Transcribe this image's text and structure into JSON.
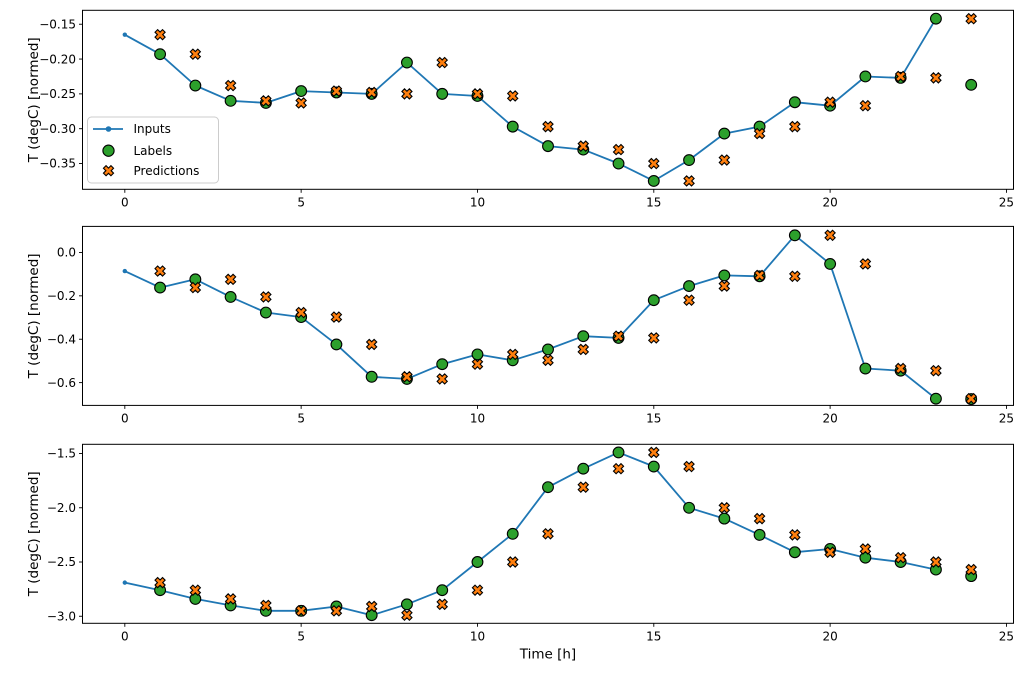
{
  "figure": {
    "background": "#ffffff",
    "xlabel": "Time [h]",
    "ylabel": "T (degC) [normed]"
  },
  "legend": {
    "items": [
      {
        "label": "Inputs",
        "marker": "line-dot",
        "color": "#1f77b4",
        "edge": "#1f77b4"
      },
      {
        "label": "Labels",
        "marker": "circle",
        "color": "#2ca02c",
        "edge": "#000000"
      },
      {
        "label": "Predictions",
        "marker": "x",
        "color": "#ff7f0e",
        "edge": "#000000"
      }
    ]
  },
  "chart_data": [
    {
      "type": "line",
      "title": "",
      "xlabel": "",
      "ylabel": "T (degC) [normed]",
      "xlim": [
        -1.2,
        25.2
      ],
      "ylim": [
        -0.387,
        -0.13
      ],
      "xticks": [
        0,
        5,
        10,
        15,
        20,
        25
      ],
      "xtick_labels": [
        "0",
        "5",
        "10",
        "15",
        "20",
        "25"
      ],
      "yticks": [
        -0.15,
        -0.2,
        -0.25,
        -0.3,
        -0.35
      ],
      "ytick_labels": [
        "−0.15",
        "−0.20",
        "−0.25",
        "−0.30",
        "−0.35"
      ],
      "grid": false,
      "legend_visible": true,
      "series": [
        {
          "name": "Inputs",
          "type": "line",
          "color": "#1f77b4",
          "x": [
            0,
            1,
            2,
            3,
            4,
            5,
            6,
            7,
            8,
            9,
            10,
            11,
            12,
            13,
            14,
            15,
            16,
            17,
            18,
            19,
            20,
            21,
            22,
            23
          ],
          "y": [
            -0.165,
            -0.193,
            -0.238,
            -0.26,
            -0.263,
            -0.246,
            -0.248,
            -0.25,
            -0.205,
            -0.25,
            -0.253,
            -0.297,
            -0.325,
            -0.33,
            -0.35,
            -0.375,
            -0.345,
            -0.307,
            -0.297,
            -0.262,
            -0.267,
            -0.225,
            -0.227,
            -0.142
          ]
        },
        {
          "name": "Labels",
          "type": "scatter",
          "marker": "circle",
          "color": "#2ca02c",
          "edge": "#000000",
          "x": [
            1,
            2,
            3,
            4,
            5,
            6,
            7,
            8,
            9,
            10,
            11,
            12,
            13,
            14,
            15,
            16,
            17,
            18,
            19,
            20,
            21,
            22,
            23,
            24
          ],
          "y": [
            -0.193,
            -0.238,
            -0.26,
            -0.263,
            -0.246,
            -0.248,
            -0.25,
            -0.205,
            -0.25,
            -0.253,
            -0.297,
            -0.325,
            -0.33,
            -0.35,
            -0.375,
            -0.345,
            -0.307,
            -0.297,
            -0.262,
            -0.267,
            -0.225,
            -0.227,
            -0.142,
            -0.237
          ]
        },
        {
          "name": "Predictions",
          "type": "scatter",
          "marker": "x",
          "color": "#ff7f0e",
          "edge": "#000000",
          "x": [
            1,
            2,
            3,
            4,
            5,
            6,
            7,
            8,
            9,
            10,
            11,
            12,
            13,
            14,
            15,
            16,
            17,
            18,
            19,
            20,
            21,
            22,
            23,
            24
          ],
          "y": [
            -0.165,
            -0.193,
            -0.238,
            -0.26,
            -0.263,
            -0.246,
            -0.248,
            -0.25,
            -0.205,
            -0.25,
            -0.253,
            -0.297,
            -0.325,
            -0.33,
            -0.35,
            -0.375,
            -0.345,
            -0.307,
            -0.297,
            -0.262,
            -0.267,
            -0.225,
            -0.227,
            -0.142
          ]
        }
      ]
    },
    {
      "type": "line",
      "title": "",
      "xlabel": "",
      "ylabel": "T (degC) [normed]",
      "xlim": [
        -1.2,
        25.2
      ],
      "ylim": [
        -0.705,
        0.12
      ],
      "xticks": [
        0,
        5,
        10,
        15,
        20,
        25
      ],
      "xtick_labels": [
        "0",
        "5",
        "10",
        "15",
        "20",
        "25"
      ],
      "yticks": [
        0.0,
        -0.2,
        -0.4,
        -0.6
      ],
      "ytick_labels": [
        "0.0",
        "−0.2",
        "−0.4",
        "−0.6"
      ],
      "grid": false,
      "legend_visible": false,
      "series": [
        {
          "name": "Inputs",
          "type": "line",
          "color": "#1f77b4",
          "x": [
            0,
            1,
            2,
            3,
            4,
            5,
            6,
            7,
            8,
            9,
            10,
            11,
            12,
            13,
            14,
            15,
            16,
            17,
            18,
            19,
            20,
            21,
            22,
            23
          ],
          "y": [
            -0.086,
            -0.162,
            -0.124,
            -0.205,
            -0.277,
            -0.298,
            -0.424,
            -0.573,
            -0.583,
            -0.515,
            -0.47,
            -0.497,
            -0.447,
            -0.386,
            -0.394,
            -0.22,
            -0.155,
            -0.106,
            -0.11,
            0.079,
            -0.053,
            -0.535,
            -0.545,
            -0.674
          ]
        },
        {
          "name": "Labels",
          "type": "scatter",
          "marker": "circle",
          "color": "#2ca02c",
          "edge": "#000000",
          "x": [
            1,
            2,
            3,
            4,
            5,
            6,
            7,
            8,
            9,
            10,
            11,
            12,
            13,
            14,
            15,
            16,
            17,
            18,
            19,
            20,
            21,
            22,
            23,
            24
          ],
          "y": [
            -0.162,
            -0.124,
            -0.205,
            -0.277,
            -0.298,
            -0.424,
            -0.573,
            -0.583,
            -0.515,
            -0.47,
            -0.497,
            -0.447,
            -0.386,
            -0.394,
            -0.22,
            -0.155,
            -0.106,
            -0.11,
            0.079,
            -0.053,
            -0.535,
            -0.545,
            -0.674,
            -0.676
          ]
        },
        {
          "name": "Predictions",
          "type": "scatter",
          "marker": "x",
          "color": "#ff7f0e",
          "edge": "#000000",
          "x": [
            1,
            2,
            3,
            4,
            5,
            6,
            7,
            8,
            9,
            10,
            11,
            12,
            13,
            14,
            15,
            16,
            17,
            18,
            19,
            20,
            21,
            22,
            23,
            24
          ],
          "y": [
            -0.086,
            -0.162,
            -0.124,
            -0.205,
            -0.277,
            -0.298,
            -0.424,
            -0.573,
            -0.583,
            -0.515,
            -0.47,
            -0.497,
            -0.447,
            -0.386,
            -0.394,
            -0.22,
            -0.155,
            -0.106,
            -0.11,
            0.079,
            -0.053,
            -0.535,
            -0.545,
            -0.674
          ]
        }
      ]
    },
    {
      "type": "line",
      "title": "",
      "xlabel": "Time [h]",
      "ylabel": "T (degC) [normed]",
      "xlim": [
        -1.2,
        25.2
      ],
      "ylim": [
        -3.065,
        -1.415
      ],
      "xticks": [
        0,
        5,
        10,
        15,
        20,
        25
      ],
      "xtick_labels": [
        "0",
        "5",
        "10",
        "15",
        "20",
        "25"
      ],
      "yticks": [
        -1.5,
        -2.0,
        -2.5,
        -3.0
      ],
      "ytick_labels": [
        "−1.5",
        "−2.0",
        "−2.5",
        "−3.0"
      ],
      "grid": false,
      "legend_visible": false,
      "series": [
        {
          "name": "Inputs",
          "type": "line",
          "color": "#1f77b4",
          "x": [
            0,
            1,
            2,
            3,
            4,
            5,
            6,
            7,
            8,
            9,
            10,
            11,
            12,
            13,
            14,
            15,
            16,
            17,
            18,
            19,
            20,
            21,
            22,
            23
          ],
          "y": [
            -2.69,
            -2.76,
            -2.84,
            -2.9,
            -2.95,
            -2.95,
            -2.91,
            -2.99,
            -2.89,
            -2.76,
            -2.5,
            -2.24,
            -1.81,
            -1.64,
            -1.49,
            -1.62,
            -2.0,
            -2.1,
            -2.25,
            -2.41,
            -2.38,
            -2.46,
            -2.5,
            -2.57
          ]
        },
        {
          "name": "Labels",
          "type": "scatter",
          "marker": "circle",
          "color": "#2ca02c",
          "edge": "#000000",
          "x": [
            1,
            2,
            3,
            4,
            5,
            6,
            7,
            8,
            9,
            10,
            11,
            12,
            13,
            14,
            15,
            16,
            17,
            18,
            19,
            20,
            21,
            22,
            23,
            24
          ],
          "y": [
            -2.76,
            -2.84,
            -2.9,
            -2.95,
            -2.95,
            -2.91,
            -2.99,
            -2.89,
            -2.76,
            -2.5,
            -2.24,
            -1.81,
            -1.64,
            -1.49,
            -1.62,
            -2.0,
            -2.1,
            -2.25,
            -2.41,
            -2.38,
            -2.46,
            -2.5,
            -2.57,
            -2.63
          ]
        },
        {
          "name": "Predictions",
          "type": "scatter",
          "marker": "x",
          "color": "#ff7f0e",
          "edge": "#000000",
          "x": [
            1,
            2,
            3,
            4,
            5,
            6,
            7,
            8,
            9,
            10,
            11,
            12,
            13,
            14,
            15,
            16,
            17,
            18,
            19,
            20,
            21,
            22,
            23,
            24
          ],
          "y": [
            -2.69,
            -2.76,
            -2.84,
            -2.9,
            -2.95,
            -2.95,
            -2.91,
            -2.99,
            -2.89,
            -2.76,
            -2.5,
            -2.24,
            -1.81,
            -1.64,
            -1.49,
            -1.62,
            -2.0,
            -2.1,
            -2.25,
            -2.41,
            -2.38,
            -2.46,
            -2.5,
            -2.57
          ]
        }
      ]
    }
  ]
}
